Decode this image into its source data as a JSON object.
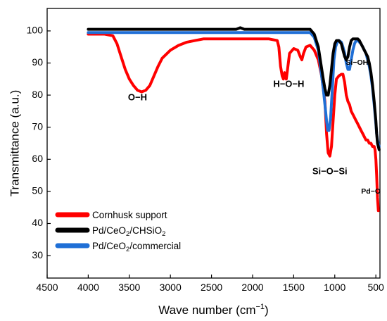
{
  "chart_data": {
    "type": "line",
    "xlabel": "Wave number (cm",
    "xlabel_sup": "−1",
    "xlabel_end": ")",
    "ylabel": "Transmittance (a.u.)",
    "xlim": [
      4500,
      450
    ],
    "ylim": [
      23,
      107
    ],
    "x_ticks": [
      4500,
      4000,
      3500,
      3000,
      2500,
      2000,
      1500,
      1000,
      500
    ],
    "y_ticks": [
      30,
      40,
      50,
      60,
      70,
      80,
      90,
      100
    ],
    "grid": false,
    "legend_position": "bottom-left",
    "series": [
      {
        "name": "Cornhusk support",
        "color": "#ff0000",
        "points": [
          [
            4000,
            99
          ],
          [
            3800,
            99
          ],
          [
            3700,
            98.5
          ],
          [
            3650,
            96
          ],
          [
            3600,
            92
          ],
          [
            3550,
            88
          ],
          [
            3500,
            85
          ],
          [
            3450,
            83
          ],
          [
            3400,
            81.5
          ],
          [
            3350,
            81
          ],
          [
            3300,
            81.5
          ],
          [
            3250,
            83
          ],
          [
            3200,
            86
          ],
          [
            3150,
            89
          ],
          [
            3100,
            91.5
          ],
          [
            3000,
            94
          ],
          [
            2900,
            95.5
          ],
          [
            2800,
            96.5
          ],
          [
            2700,
            97
          ],
          [
            2600,
            97.5
          ],
          [
            2500,
            97.5
          ],
          [
            2400,
            97.5
          ],
          [
            2300,
            97.5
          ],
          [
            2200,
            97.5
          ],
          [
            2100,
            97.5
          ],
          [
            2000,
            97.5
          ],
          [
            1900,
            97.5
          ],
          [
            1800,
            97.5
          ],
          [
            1700,
            97
          ],
          [
            1680,
            95
          ],
          [
            1660,
            89
          ],
          [
            1640,
            86
          ],
          [
            1625,
            85
          ],
          [
            1610,
            87
          ],
          [
            1600,
            86
          ],
          [
            1590,
            85
          ],
          [
            1570,
            89
          ],
          [
            1550,
            93
          ],
          [
            1500,
            94.5
          ],
          [
            1450,
            94
          ],
          [
            1420,
            92
          ],
          [
            1400,
            91
          ],
          [
            1380,
            93
          ],
          [
            1350,
            95
          ],
          [
            1300,
            95.5
          ],
          [
            1250,
            94
          ],
          [
            1200,
            91
          ],
          [
            1160,
            86
          ],
          [
            1120,
            78
          ],
          [
            1100,
            68
          ],
          [
            1080,
            62
          ],
          [
            1060,
            61
          ],
          [
            1040,
            64
          ],
          [
            1020,
            72
          ],
          [
            1000,
            80
          ],
          [
            980,
            85
          ],
          [
            950,
            86
          ],
          [
            920,
            86.5
          ],
          [
            900,
            86.5
          ],
          [
            880,
            84
          ],
          [
            860,
            80
          ],
          [
            840,
            78
          ],
          [
            820,
            77
          ],
          [
            800,
            75
          ],
          [
            780,
            74
          ],
          [
            760,
            73
          ],
          [
            740,
            72
          ],
          [
            720,
            71
          ],
          [
            700,
            70
          ],
          [
            680,
            69
          ],
          [
            660,
            68
          ],
          [
            640,
            67
          ],
          [
            620,
            66
          ],
          [
            600,
            66
          ],
          [
            580,
            65
          ],
          [
            560,
            65
          ],
          [
            540,
            64
          ],
          [
            520,
            64
          ],
          [
            510,
            63
          ],
          [
            500,
            60
          ],
          [
            490,
            55
          ],
          [
            480,
            48
          ],
          [
            470,
            44
          ]
        ]
      },
      {
        "name": "Pd/CeO",
        "name_sub": "2",
        "name_end": "/CHSiO",
        "name_sub2": "2",
        "color": "#000000",
        "points": [
          [
            4000,
            100.5
          ],
          [
            3500,
            100.5
          ],
          [
            3000,
            100.5
          ],
          [
            2500,
            100.5
          ],
          [
            2200,
            100.5
          ],
          [
            2150,
            101
          ],
          [
            2100,
            100.5
          ],
          [
            2000,
            100.5
          ],
          [
            1800,
            100.5
          ],
          [
            1600,
            100.5
          ],
          [
            1400,
            100.5
          ],
          [
            1300,
            100.5
          ],
          [
            1250,
            99
          ],
          [
            1200,
            95
          ],
          [
            1170,
            90
          ],
          [
            1140,
            85
          ],
          [
            1120,
            82
          ],
          [
            1100,
            80
          ],
          [
            1080,
            80
          ],
          [
            1060,
            83
          ],
          [
            1040,
            88
          ],
          [
            1020,
            93
          ],
          [
            1000,
            96
          ],
          [
            980,
            97
          ],
          [
            950,
            97
          ],
          [
            920,
            96
          ],
          [
            900,
            94
          ],
          [
            880,
            92
          ],
          [
            860,
            91
          ],
          [
            840,
            92
          ],
          [
            820,
            95
          ],
          [
            800,
            97
          ],
          [
            780,
            97.5
          ],
          [
            750,
            97.5
          ],
          [
            720,
            97.5
          ],
          [
            700,
            97
          ],
          [
            680,
            96
          ],
          [
            660,
            95
          ],
          [
            640,
            94
          ],
          [
            620,
            93
          ],
          [
            600,
            92
          ],
          [
            580,
            90
          ],
          [
            560,
            87
          ],
          [
            540,
            83
          ],
          [
            520,
            78
          ],
          [
            500,
            72
          ],
          [
            490,
            68
          ],
          [
            480,
            65
          ],
          [
            470,
            64
          ],
          [
            460,
            63
          ]
        ]
      },
      {
        "name": "Pd/CeO",
        "name_sub": "2",
        "name_end": "/commercial",
        "color": "#1f6fd6",
        "points": [
          [
            4000,
            99.5
          ],
          [
            3500,
            99.5
          ],
          [
            3000,
            99.5
          ],
          [
            2500,
            99.5
          ],
          [
            2200,
            99.5
          ],
          [
            2000,
            99.5
          ],
          [
            1800,
            99.5
          ],
          [
            1600,
            99.5
          ],
          [
            1400,
            99.5
          ],
          [
            1300,
            99.5
          ],
          [
            1250,
            98
          ],
          [
            1200,
            94
          ],
          [
            1170,
            88
          ],
          [
            1140,
            82
          ],
          [
            1120,
            77
          ],
          [
            1100,
            72
          ],
          [
            1085,
            69
          ],
          [
            1070,
            69
          ],
          [
            1050,
            73
          ],
          [
            1030,
            82
          ],
          [
            1010,
            91
          ],
          [
            990,
            95
          ],
          [
            970,
            96.5
          ],
          [
            950,
            97
          ],
          [
            920,
            96.5
          ],
          [
            900,
            95
          ],
          [
            880,
            93
          ],
          [
            860,
            90
          ],
          [
            840,
            88
          ],
          [
            820,
            88
          ],
          [
            800,
            91
          ],
          [
            780,
            94
          ],
          [
            760,
            96
          ],
          [
            740,
            97
          ],
          [
            720,
            97
          ],
          [
            700,
            96.5
          ],
          [
            680,
            96
          ],
          [
            660,
            95
          ],
          [
            640,
            94
          ],
          [
            620,
            93
          ],
          [
            600,
            91
          ],
          [
            580,
            89
          ],
          [
            560,
            86
          ],
          [
            540,
            82
          ],
          [
            520,
            77
          ],
          [
            500,
            71
          ],
          [
            490,
            68
          ],
          [
            480,
            66
          ],
          [
            470,
            65
          ],
          [
            460,
            64
          ]
        ]
      }
    ],
    "annotations": [
      {
        "text": "O−H",
        "x": 3400,
        "y": 78.4,
        "size": "normal"
      },
      {
        "text": "H−O−H",
        "x": 1560,
        "y": 82.6,
        "size": "normal"
      },
      {
        "text": "Si−OH",
        "x": 730,
        "y": 89.5,
        "size": "small"
      },
      {
        "text": "Si−O−Si",
        "x": 1060,
        "y": 55.4,
        "size": "normal"
      },
      {
        "text": "Pd−O",
        "x": 560,
        "y": 49.3,
        "size": "small"
      }
    ]
  }
}
